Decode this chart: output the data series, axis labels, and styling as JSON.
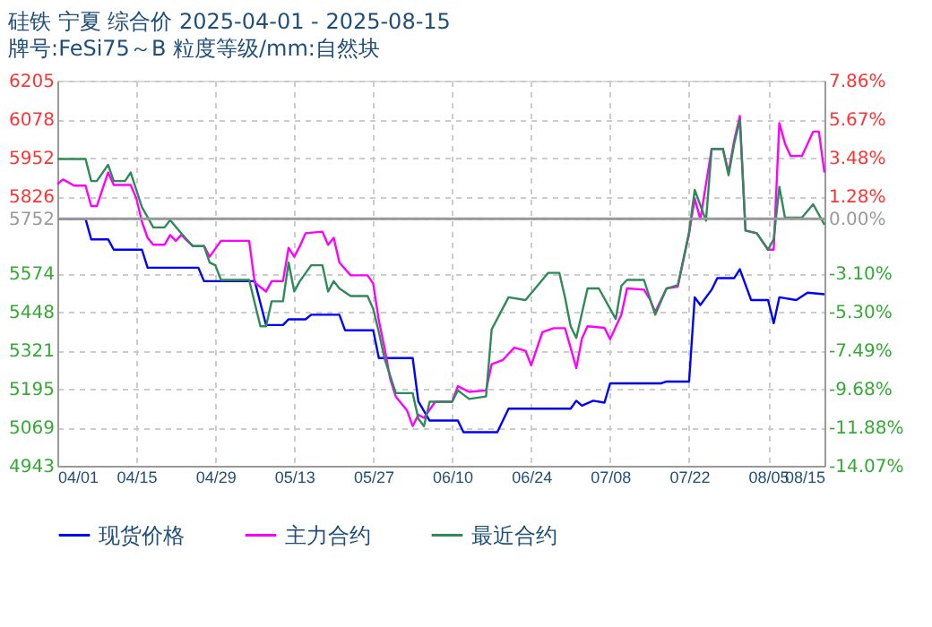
{
  "chart_data": {
    "type": "line",
    "title": "硅铁 宁夏 综合价 2025-04-01 - 2025-08-15",
    "subtitle": "牌号:FeSi75～B 粒度等级/mm:自然块",
    "xlim": [
      "2025-04-01",
      "2025-08-15"
    ],
    "xticks": [
      {
        "value": "2025-04-01",
        "label": "04/01"
      },
      {
        "value": "2025-04-15",
        "label": "04/15"
      },
      {
        "value": "2025-04-29",
        "label": "04/29"
      },
      {
        "value": "2025-05-13",
        "label": "05/13"
      },
      {
        "value": "2025-05-27",
        "label": "05/27"
      },
      {
        "value": "2025-06-10",
        "label": "06/10"
      },
      {
        "value": "2025-06-24",
        "label": "06/24"
      },
      {
        "value": "2025-07-08",
        "label": "07/08"
      },
      {
        "value": "2025-07-22",
        "label": "07/22"
      },
      {
        "value": "2025-08-05",
        "label": "08/05"
      },
      {
        "value": "2025-08-15",
        "label": "08/15"
      }
    ],
    "ylim": [
      4943,
      6205
    ],
    "yticks": [
      6205,
      6078,
      5952,
      5826,
      5752,
      5574,
      5448,
      5321,
      5195,
      5069,
      4943
    ],
    "y2lim": [
      -14.07,
      7.86
    ],
    "y2ticks": [
      {
        "value": 7.86,
        "label": "7.86%"
      },
      {
        "value": 5.67,
        "label": "5.67%"
      },
      {
        "value": 3.48,
        "label": "3.48%"
      },
      {
        "value": 1.28,
        "label": "1.28%"
      },
      {
        "value": 0,
        "label": "0.00%"
      },
      {
        "value": -3.1,
        "label": "-3.10%"
      },
      {
        "value": -5.3,
        "label": "-5.30%"
      },
      {
        "value": -7.49,
        "label": "-7.49%"
      },
      {
        "value": -9.68,
        "label": "-9.68%"
      },
      {
        "value": -11.88,
        "label": "-11.88%"
      },
      {
        "value": -14.07,
        "label": "-14.07%"
      }
    ],
    "ref_lines": [
      {
        "axis": "y",
        "value": 5752,
        "color": "#999999",
        "line_style": "solid"
      }
    ],
    "grid": true,
    "legend": "bottom",
    "line_style": "solid",
    "series": [
      {
        "name": "现货价格",
        "color": "#0000ff",
        "x": [
          "2025-04-01",
          "2025-04-06",
          "2025-04-07",
          "2025-04-10",
          "2025-04-11",
          "2025-04-16",
          "2025-04-17",
          "2025-04-26",
          "2025-04-27",
          "2025-05-06",
          "2025-05-08",
          "2025-05-11",
          "2025-05-12",
          "2025-05-15",
          "2025-05-16",
          "2025-05-21",
          "2025-05-22",
          "2025-05-27",
          "2025-05-28",
          "2025-06-03",
          "2025-06-04",
          "2025-06-06",
          "2025-06-11",
          "2025-06-12",
          "2025-06-18",
          "2025-06-20",
          "2025-07-01",
          "2025-07-02",
          "2025-07-03",
          "2025-07-05",
          "2025-07-07",
          "2025-07-08",
          "2025-07-17",
          "2025-07-18",
          "2025-07-22",
          "2025-07-23",
          "2025-07-24",
          "2025-07-26",
          "2025-07-27",
          "2025-07-30",
          "2025-07-31",
          "2025-08-02",
          "2025-08-05",
          "2025-08-06",
          "2025-08-07",
          "2025-08-10",
          "2025-08-12",
          "2025-08-15"
        ],
        "values": [
          5752,
          5752,
          5685,
          5685,
          5651,
          5651,
          5592,
          5592,
          5548,
          5548,
          5404,
          5404,
          5423,
          5423,
          5438,
          5438,
          5387,
          5387,
          5296,
          5296,
          5154,
          5091,
          5091,
          5053,
          5053,
          5130,
          5130,
          5156,
          5140,
          5156,
          5150,
          5213,
          5213,
          5219,
          5219,
          5495,
          5470,
          5520,
          5558,
          5558,
          5587,
          5486,
          5486,
          5410,
          5495,
          5486,
          5510,
          5505
        ]
      },
      {
        "name": "主力合约",
        "color": "#ff00ff",
        "x": [
          "2025-04-01",
          "2025-04-02",
          "2025-04-04",
          "2025-04-06",
          "2025-04-07",
          "2025-04-08",
          "2025-04-10",
          "2025-04-11",
          "2025-04-14",
          "2025-04-15",
          "2025-04-16",
          "2025-04-17",
          "2025-04-18",
          "2025-04-20",
          "2025-04-21",
          "2025-04-22",
          "2025-04-23",
          "2025-04-24",
          "2025-04-25",
          "2025-04-27",
          "2025-04-28",
          "2025-04-30",
          "2025-05-05",
          "2025-05-06",
          "2025-05-08",
          "2025-05-09",
          "2025-05-11",
          "2025-05-12",
          "2025-05-13",
          "2025-05-14",
          "2025-05-15",
          "2025-05-18",
          "2025-05-19",
          "2025-05-20",
          "2025-05-21",
          "2025-05-23",
          "2025-05-26",
          "2025-05-27",
          "2025-05-28",
          "2025-05-29",
          "2025-05-30",
          "2025-05-31",
          "2025-06-02",
          "2025-06-03",
          "2025-06-04",
          "2025-06-05",
          "2025-06-07",
          "2025-06-10",
          "2025-06-11",
          "2025-06-13",
          "2025-06-16",
          "2025-06-17",
          "2025-06-19",
          "2025-06-21",
          "2025-06-23",
          "2025-06-24",
          "2025-06-26",
          "2025-06-28",
          "2025-06-30",
          "2025-07-01",
          "2025-07-02",
          "2025-07-03",
          "2025-07-04",
          "2025-07-07",
          "2025-07-08",
          "2025-07-10",
          "2025-07-11",
          "2025-07-14",
          "2025-07-15",
          "2025-07-16",
          "2025-07-18",
          "2025-07-20",
          "2025-07-22",
          "2025-07-23",
          "2025-07-24",
          "2025-07-26",
          "2025-07-28",
          "2025-07-29",
          "2025-07-30",
          "2025-07-31",
          "2025-08-01",
          "2025-08-03",
          "2025-08-05",
          "2025-08-06",
          "2025-08-07",
          "2025-08-08",
          "2025-08-09",
          "2025-08-11",
          "2025-08-13",
          "2025-08-14",
          "2025-08-15"
        ],
        "values": [
          5866,
          5881,
          5861,
          5861,
          5794,
          5794,
          5904,
          5863,
          5863,
          5820,
          5742,
          5690,
          5667,
          5667,
          5699,
          5680,
          5700,
          5680,
          5663,
          5663,
          5628,
          5680,
          5680,
          5543,
          5514,
          5548,
          5548,
          5657,
          5628,
          5663,
          5705,
          5710,
          5667,
          5690,
          5609,
          5567,
          5567,
          5540,
          5419,
          5330,
          5229,
          5170,
          5124,
          5073,
          5110,
          5100,
          5153,
          5153,
          5204,
          5185,
          5190,
          5276,
          5290,
          5330,
          5320,
          5272,
          5381,
          5394,
          5394,
          5330,
          5263,
          5360,
          5400,
          5395,
          5358,
          5438,
          5524,
          5520,
          5490,
          5447,
          5524,
          5530,
          5704,
          5818,
          5751,
          5981,
          5981,
          5904,
          6009,
          6089,
          5714,
          5705,
          5651,
          5651,
          6066,
          5999,
          5958,
          5958,
          6038,
          6038,
          5904
        ]
      },
      {
        "name": "最近合约",
        "color": "#2e8b57",
        "x": [
          "2025-04-01",
          "2025-04-06",
          "2025-04-07",
          "2025-04-08",
          "2025-04-10",
          "2025-04-11",
          "2025-04-13",
          "2025-04-14",
          "2025-04-16",
          "2025-04-17",
          "2025-04-18",
          "2025-04-20",
          "2025-04-21",
          "2025-04-23",
          "2025-04-25",
          "2025-04-27",
          "2025-04-28",
          "2025-04-29",
          "2025-04-30",
          "2025-05-05",
          "2025-05-07",
          "2025-05-08",
          "2025-05-09",
          "2025-05-11",
          "2025-05-12",
          "2025-05-13",
          "2025-05-14",
          "2025-05-16",
          "2025-05-18",
          "2025-05-19",
          "2025-05-20",
          "2025-05-21",
          "2025-05-23",
          "2025-05-26",
          "2025-05-27",
          "2025-05-28",
          "2025-05-29",
          "2025-05-31",
          "2025-06-03",
          "2025-06-04",
          "2025-06-05",
          "2025-06-06",
          "2025-06-10",
          "2025-06-11",
          "2025-06-13",
          "2025-06-16",
          "2025-06-17",
          "2025-06-20",
          "2025-06-23",
          "2025-06-27",
          "2025-06-29",
          "2025-06-30",
          "2025-07-01",
          "2025-07-02",
          "2025-07-04",
          "2025-07-06",
          "2025-07-09",
          "2025-07-10",
          "2025-07-11",
          "2025-07-14",
          "2025-07-16",
          "2025-07-18",
          "2025-07-20",
          "2025-07-22",
          "2025-07-23",
          "2025-07-25",
          "2025-07-26",
          "2025-07-28",
          "2025-07-29",
          "2025-07-30",
          "2025-07-31",
          "2025-08-01",
          "2025-08-03",
          "2025-08-05",
          "2025-08-06",
          "2025-08-07",
          "2025-08-08",
          "2025-08-11",
          "2025-08-13",
          "2025-08-15"
        ],
        "values": [
          5948,
          5948,
          5876,
          5876,
          5929,
          5876,
          5876,
          5904,
          5790,
          5758,
          5724,
          5724,
          5748,
          5704,
          5663,
          5663,
          5609,
          5600,
          5552,
          5552,
          5400,
          5400,
          5482,
          5482,
          5609,
          5514,
          5548,
          5600,
          5600,
          5514,
          5548,
          5524,
          5499,
          5499,
          5457,
          5381,
          5295,
          5181,
          5181,
          5097,
          5073,
          5153,
          5153,
          5190,
          5162,
          5170,
          5390,
          5495,
          5486,
          5575,
          5575,
          5495,
          5400,
          5362,
          5524,
          5524,
          5424,
          5533,
          5552,
          5552,
          5438,
          5524,
          5535,
          5709,
          5847,
          5746,
          5981,
          5981,
          5895,
          5999,
          6075,
          5714,
          5705,
          5651,
          5685,
          5857,
          5756,
          5756,
          5800,
          5733
        ]
      }
    ]
  }
}
